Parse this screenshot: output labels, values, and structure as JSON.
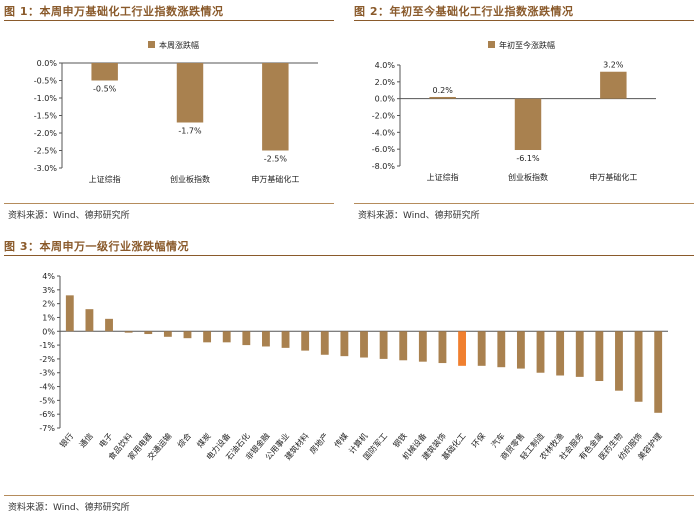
{
  "colors": {
    "bar": "#a9814f",
    "highlight": "#f07f2f",
    "accent": "#8a5a2b",
    "axis": "#555555"
  },
  "fig1": {
    "title": "图 1：本周申万基础化工行业指数涨跌情况",
    "source": "资料来源：Wind、德邦研究所"
  },
  "fig2": {
    "title": "图 2：年初至今基础化工行业指数涨跌情况",
    "source": "资料来源：Wind、德邦研究所"
  },
  "fig3": {
    "title": "图 3：本周申万一级行业涨跌幅情况",
    "source": "资料来源：Wind、德邦研究所"
  },
  "chart_data": [
    {
      "type": "bar",
      "title": "本周申万基础化工行业指数涨跌情况",
      "legend": "本周涨跌幅",
      "legend_position": "top-center",
      "categories": [
        "上证综指",
        "创业板指数",
        "申万基础化工"
      ],
      "values": [
        -0.5,
        -1.7,
        -2.5
      ],
      "labels": [
        "-0.5%",
        "-1.7%",
        "-2.5%"
      ],
      "ylim": [
        -3.0,
        0.0
      ],
      "yticks": [
        0.0,
        -0.5,
        -1.0,
        -1.5,
        -2.0,
        -2.5,
        -3.0
      ],
      "ytick_labels": [
        "0.0%",
        "-0.5%",
        "-1.0%",
        "-1.5%",
        "-2.0%",
        "-2.5%",
        "-3.0%"
      ]
    },
    {
      "type": "bar",
      "title": "年初至今基础化工行业指数涨跌情况",
      "legend": "年初至今涨跌幅",
      "legend_position": "top-center",
      "categories": [
        "上证综指",
        "创业板指数",
        "申万基础化工"
      ],
      "values": [
        0.2,
        -6.1,
        3.2
      ],
      "labels": [
        "0.2%",
        "-6.1%",
        "3.2%"
      ],
      "ylim": [
        -8.0,
        4.0
      ],
      "yticks": [
        4.0,
        2.0,
        0.0,
        -2.0,
        -4.0,
        -6.0,
        -8.0
      ],
      "ytick_labels": [
        "4.0%",
        "2.0%",
        "0.0%",
        "-2.0%",
        "-4.0%",
        "-6.0%",
        "-8.0%"
      ]
    },
    {
      "type": "bar",
      "title": "本周申万一级行业涨跌幅情况",
      "categories": [
        "银行",
        "通信",
        "电子",
        "食品饮料",
        "家用电器",
        "交通运输",
        "综合",
        "煤炭",
        "电力设备",
        "石油石化",
        "非银金融",
        "公用事业",
        "建筑材料",
        "房地产",
        "传媒",
        "计算机",
        "国防军工",
        "钢铁",
        "机械设备",
        "建筑装饰",
        "基础化工",
        "环保",
        "汽车",
        "商贸零售",
        "轻工制造",
        "农林牧渔",
        "社会服务",
        "有色金属",
        "医药生物",
        "纺织服饰",
        "美容护理"
      ],
      "values": [
        2.6,
        1.6,
        0.9,
        -0.1,
        -0.2,
        -0.4,
        -0.5,
        -0.8,
        -0.8,
        -1.0,
        -1.1,
        -1.2,
        -1.4,
        -1.7,
        -1.8,
        -1.9,
        -2.0,
        -2.1,
        -2.2,
        -2.3,
        -2.5,
        -2.5,
        -2.6,
        -2.7,
        -3.0,
        -3.2,
        -3.3,
        -3.6,
        -4.3,
        -5.1,
        -5.9
      ],
      "highlight_index": 20,
      "ylim": [
        -7,
        4
      ],
      "yticks": [
        4,
        3,
        2,
        1,
        0,
        -1,
        -2,
        -3,
        -4,
        -5,
        -6,
        -7
      ],
      "ytick_labels": [
        "4%",
        "3%",
        "2%",
        "1%",
        "0%",
        "-1%",
        "-2%",
        "-3%",
        "-4%",
        "-5%",
        "-6%",
        "-7%"
      ]
    }
  ]
}
